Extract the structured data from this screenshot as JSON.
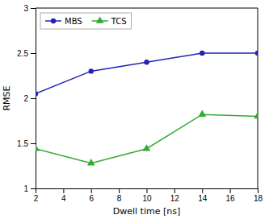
{
  "chart_data": {
    "type": "line",
    "x": [
      2,
      6,
      10,
      14,
      18
    ],
    "series": [
      {
        "name": "MBS",
        "color": "#2222bb",
        "marker": "circle",
        "values": [
          2.05,
          2.3,
          2.4,
          2.5,
          2.5
        ]
      },
      {
        "name": "TCS",
        "color": "#33aa33",
        "marker": "triangle",
        "values": [
          1.44,
          1.28,
          1.44,
          1.82,
          1.8
        ]
      }
    ],
    "xlabel": "Dwell time [ns]",
    "ylabel": "RMSE",
    "xlim": [
      2,
      18
    ],
    "ylim": [
      1.0,
      3.0
    ],
    "xticks": [
      2,
      4,
      6,
      8,
      10,
      12,
      14,
      16,
      18
    ],
    "yticks": [
      1,
      1.5,
      2,
      2.5,
      3
    ],
    "grid": false,
    "legend": "top-left"
  }
}
